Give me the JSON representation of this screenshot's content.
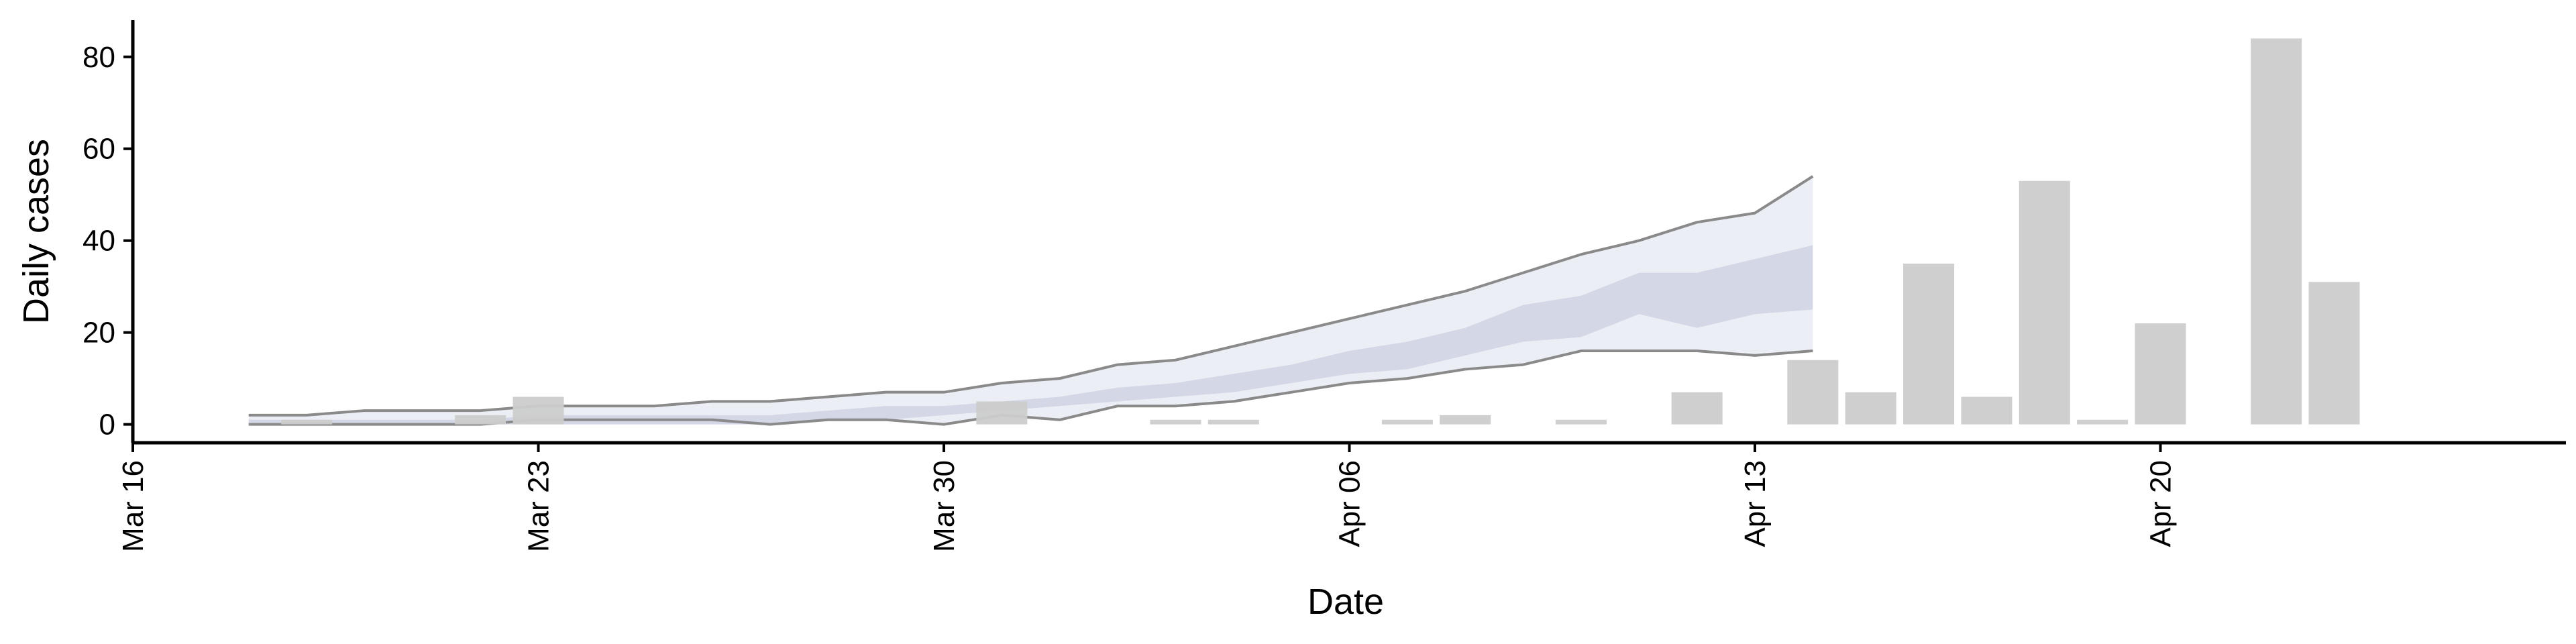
{
  "chart_data": {
    "type": "bar",
    "xlabel": "Date",
    "ylabel": "Daily cases",
    "ylim": [
      -4,
      88
    ],
    "yticks": [
      0,
      20,
      40,
      60,
      80
    ],
    "xlim": [
      "2020-03-16",
      "2020-04-27"
    ],
    "xticks": [
      {
        "date": "2020-03-16",
        "label": "Mar 16"
      },
      {
        "date": "2020-03-23",
        "label": "Mar 23"
      },
      {
        "date": "2020-03-30",
        "label": "Mar 30"
      },
      {
        "date": "2020-04-06",
        "label": "Apr 06"
      },
      {
        "date": "2020-04-13",
        "label": "Apr 13"
      },
      {
        "date": "2020-04-20",
        "label": "Apr 20"
      }
    ],
    "grid": false,
    "colors": {
      "bars": "#cccccc",
      "band_outer": "#eceef5",
      "band_inner": "#d3d7e6",
      "band_median": "#c0c6db",
      "band_edges": "#8a8a8a",
      "axis": "#000000"
    },
    "bars": {
      "name": "Daily cases",
      "points": [
        {
          "date": "2020-03-19",
          "value": 1
        },
        {
          "date": "2020-03-22",
          "value": 2
        },
        {
          "date": "2020-03-23",
          "value": 6
        },
        {
          "date": "2020-03-31",
          "value": 5
        },
        {
          "date": "2020-04-03",
          "value": 1
        },
        {
          "date": "2020-04-04",
          "value": 1
        },
        {
          "date": "2020-04-07",
          "value": 1
        },
        {
          "date": "2020-04-08",
          "value": 2
        },
        {
          "date": "2020-04-10",
          "value": 1
        },
        {
          "date": "2020-04-12",
          "value": 7
        },
        {
          "date": "2020-04-14",
          "value": 14
        },
        {
          "date": "2020-04-15",
          "value": 7
        },
        {
          "date": "2020-04-16",
          "value": 35
        },
        {
          "date": "2020-04-17",
          "value": 6
        },
        {
          "date": "2020-04-18",
          "value": 53
        },
        {
          "date": "2020-04-19",
          "value": 1
        },
        {
          "date": "2020-04-20",
          "value": 22
        },
        {
          "date": "2020-04-22",
          "value": 84
        },
        {
          "date": "2020-04-23",
          "value": 31
        }
      ]
    },
    "band": {
      "dates": [
        "2020-03-18",
        "2020-03-19",
        "2020-03-20",
        "2020-03-21",
        "2020-03-22",
        "2020-03-23",
        "2020-03-24",
        "2020-03-25",
        "2020-03-26",
        "2020-03-27",
        "2020-03-28",
        "2020-03-29",
        "2020-03-30",
        "2020-03-31",
        "2020-04-01",
        "2020-04-02",
        "2020-04-03",
        "2020-04-04",
        "2020-04-05",
        "2020-04-06",
        "2020-04-07",
        "2020-04-08",
        "2020-04-09",
        "2020-04-10",
        "2020-04-11",
        "2020-04-12",
        "2020-04-13",
        "2020-04-14"
      ],
      "outer_lower": [
        0,
        0,
        0,
        0,
        0,
        1,
        1,
        1,
        1,
        0,
        1,
        1,
        0,
        2,
        1,
        4,
        4,
        5,
        7,
        9,
        10,
        12,
        13,
        16,
        16,
        16,
        15,
        16
      ],
      "outer_upper": [
        2,
        2,
        3,
        3,
        3,
        4,
        4,
        4,
        5,
        5,
        6,
        7,
        7,
        9,
        10,
        13,
        14,
        17,
        20,
        23,
        26,
        29,
        33,
        37,
        40,
        44,
        46,
        54
      ],
      "inner_lower": [
        0,
        0,
        0,
        0,
        0,
        0,
        0,
        0,
        0,
        0,
        1,
        1,
        2,
        3,
        4,
        5,
        6,
        7,
        9,
        11,
        12,
        15,
        18,
        19,
        24,
        21,
        24,
        25
      ],
      "inner_upper": [
        1,
        1,
        1,
        1,
        1,
        2,
        2,
        2,
        2,
        2,
        3,
        4,
        4,
        5,
        6,
        8,
        9,
        11,
        13,
        16,
        18,
        21,
        26,
        28,
        33,
        33,
        36,
        39
      ],
      "median": [
        0.5,
        0.5,
        0.5,
        0.5,
        0.5,
        1,
        1,
        1,
        1,
        1,
        2,
        2.5,
        3,
        4,
        5,
        6.5,
        7.5,
        9,
        11,
        13.5,
        15,
        18,
        22,
        23.5,
        28,
        27,
        30,
        32
      ]
    }
  }
}
